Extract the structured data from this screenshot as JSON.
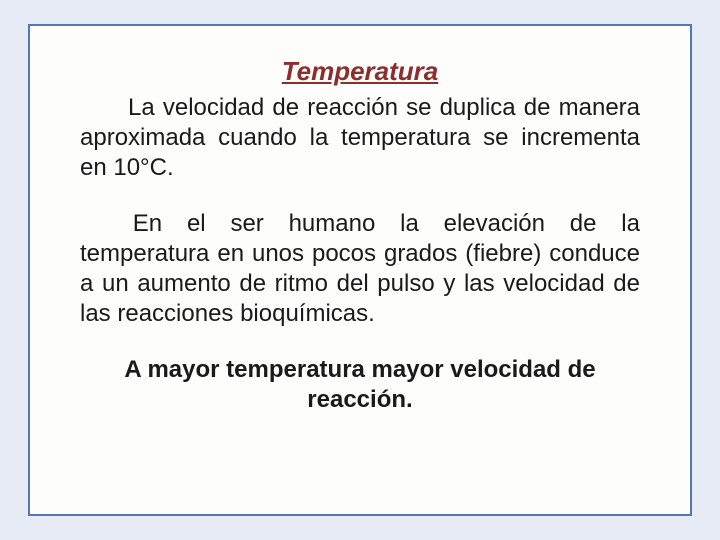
{
  "colors": {
    "outer_bg": "#e7ebf5",
    "inner_bg": "#fdfdfb",
    "border": "#5577b8",
    "title_color": "#8b2e2e",
    "text_color": "#1a1a1a"
  },
  "layout": {
    "outer_padding": "24px 28px",
    "frame_border_width": 2,
    "frame_padding": "30px 50px"
  },
  "typography": {
    "title_fontsize": 26,
    "body_fontsize": 24,
    "font_family": "Arial, Helvetica, sans-serif"
  },
  "content": {
    "title": "Temperatura",
    "paragraph1": "La velocidad de reacción se duplica de manera aproximada cuando la temperatura se incrementa en 10°C.",
    "paragraph2": "En el ser humano la elevación de la temperatura en unos pocos grados (fiebre) conduce a un aumento de ritmo del pulso y las velocidad de las reacciones bioquímicas.",
    "conclusion": "A mayor temperatura mayor velocidad de reacción."
  }
}
